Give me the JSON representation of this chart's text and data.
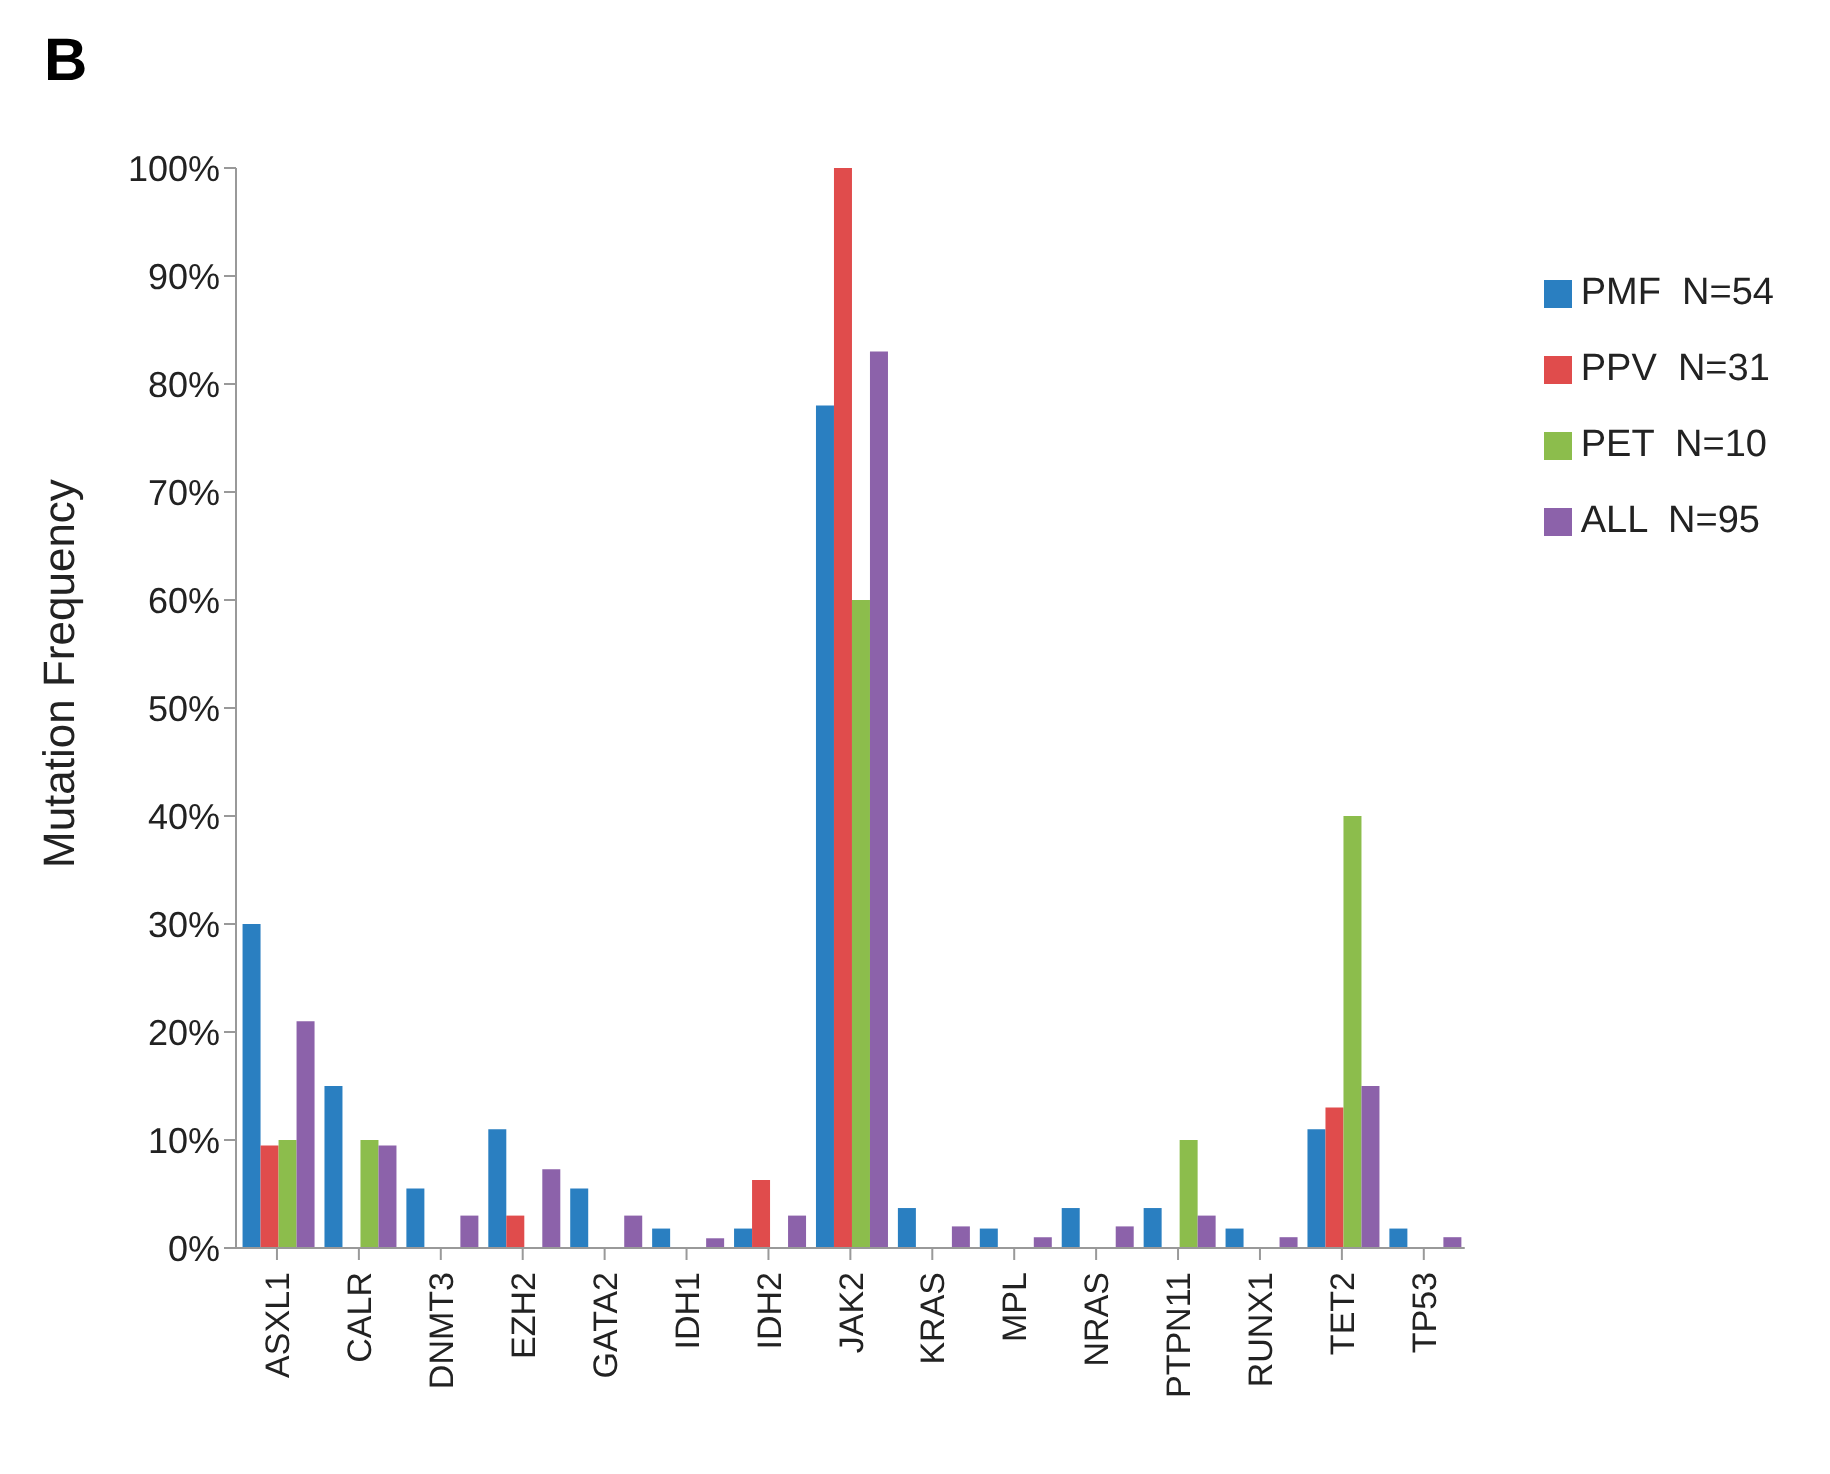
{
  "chart_data": {
    "type": "bar",
    "ylabel": "Mutation Frequency",
    "annotations": [
      "B"
    ],
    "categories": [
      "ASXL1",
      "CALR",
      "DNMT3",
      "EZH2",
      "GATA2",
      "IDH1",
      "IDH2",
      "JAK2",
      "KRAS",
      "MPL",
      "NRAS",
      "PTPN11",
      "RUNX1",
      "TET2",
      "TP53"
    ],
    "series": [
      {
        "name": "PMF  N=54",
        "color": "#2a7fc1",
        "values": [
          30,
          15,
          5.5,
          11,
          5.5,
          1.8,
          1.8,
          78,
          3.7,
          1.8,
          3.7,
          3.7,
          1.8,
          11,
          1.8
        ]
      },
      {
        "name": "PPV  N=31",
        "color": "#e04c4c",
        "values": [
          9.5,
          0,
          0,
          3,
          0,
          0,
          6.3,
          100,
          0,
          0,
          0,
          0,
          0,
          13,
          0
        ]
      },
      {
        "name": "PET  N=10",
        "color": "#8cbd4c",
        "values": [
          10,
          10,
          0,
          0,
          0,
          0,
          0,
          60,
          0,
          0,
          0,
          10,
          0,
          40,
          0
        ]
      },
      {
        "name": "ALL  N=95",
        "color": "#8c62aa",
        "values": [
          21,
          9.5,
          3,
          7.3,
          3,
          0.9,
          3,
          83,
          2,
          1,
          2,
          3,
          1,
          15,
          1
        ]
      }
    ],
    "ylim": [
      0,
      100
    ],
    "yticks": [
      {
        "value": 0,
        "label": "0%"
      },
      {
        "value": 10,
        "label": "10%"
      },
      {
        "value": 20,
        "label": "20%"
      },
      {
        "value": 30,
        "label": "30%"
      },
      {
        "value": 40,
        "label": "40%"
      },
      {
        "value": 50,
        "label": "50%"
      },
      {
        "value": 60,
        "label": "60%"
      },
      {
        "value": 70,
        "label": "70%"
      },
      {
        "value": 80,
        "label": "80%"
      },
      {
        "value": 90,
        "label": "90%"
      },
      {
        "value": 100,
        "label": "100%"
      }
    ],
    "grid": false,
    "legend": "top right"
  }
}
